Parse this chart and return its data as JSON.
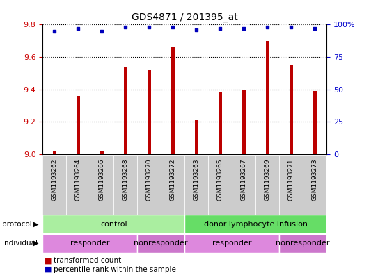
{
  "title": "GDS4871 / 201395_at",
  "samples": [
    "GSM1193262",
    "GSM1193264",
    "GSM1193266",
    "GSM1193268",
    "GSM1193270",
    "GSM1193272",
    "GSM1193263",
    "GSM1193265",
    "GSM1193267",
    "GSM1193269",
    "GSM1193271",
    "GSM1193273"
  ],
  "transformed_count": [
    9.02,
    9.36,
    9.02,
    9.54,
    9.52,
    9.66,
    9.21,
    9.38,
    9.4,
    9.7,
    9.55,
    9.39
  ],
  "percentile_rank": [
    95,
    97,
    95,
    98,
    98,
    98,
    96,
    97,
    97,
    98,
    98,
    97
  ],
  "ylim_left": [
    9.0,
    9.8
  ],
  "ylim_right": [
    0,
    100
  ],
  "yticks_left": [
    9.0,
    9.2,
    9.4,
    9.6,
    9.8
  ],
  "yticks_right": [
    0,
    25,
    50,
    75,
    100
  ],
  "ytick_labels_right": [
    "0",
    "25",
    "50",
    "75",
    "100%"
  ],
  "bar_color": "#bb0000",
  "dot_color": "#0000bb",
  "protocol_groups": [
    {
      "label": "control",
      "start": 0,
      "end": 6,
      "color": "#aaeea a"
    },
    {
      "label": "donor lymphocyte infusion",
      "start": 6,
      "end": 12,
      "color": "#66dd66"
    }
  ],
  "individual_groups": [
    {
      "label": "responder",
      "start": 0,
      "end": 4,
      "color": "#dd88dd"
    },
    {
      "label": "nonresponder",
      "start": 4,
      "end": 6,
      "color": "#cc77cc"
    },
    {
      "label": "responder",
      "start": 6,
      "end": 10,
      "color": "#dd88dd"
    },
    {
      "label": "nonresponder",
      "start": 10,
      "end": 12,
      "color": "#cc77cc"
    }
  ],
  "legend_items": [
    {
      "label": "transformed count",
      "color": "#bb0000"
    },
    {
      "label": "percentile rank within the sample",
      "color": "#0000bb"
    }
  ],
  "grid_color": "#000000",
  "tick_color_left": "#cc0000",
  "tick_color_right": "#0000cc",
  "bar_width": 0.15,
  "xticklabel_bg": "#cccccc"
}
